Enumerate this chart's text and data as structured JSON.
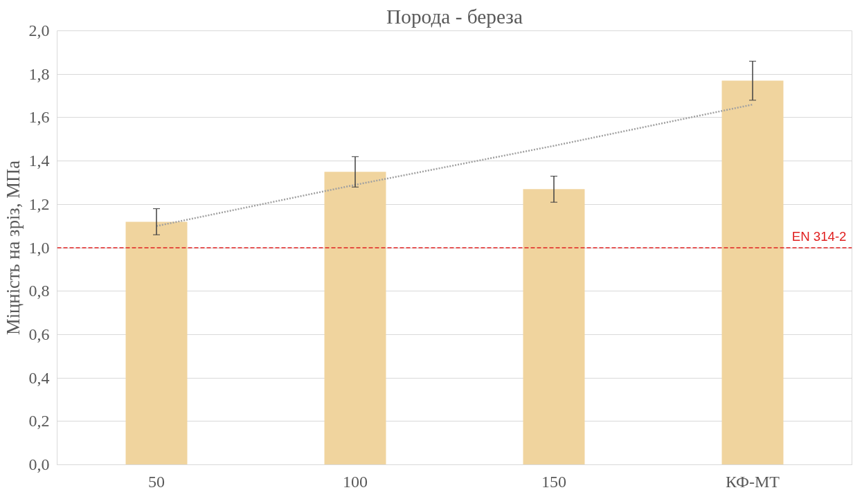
{
  "chart_data": {
    "type": "bar",
    "title": "Порода - береза",
    "ylabel": "Міцність на зріз, МПа",
    "categories": [
      "50",
      "100",
      "150",
      "КФ-МТ"
    ],
    "series": [
      {
        "color": "#f0d49e",
        "values": [
          1.12,
          1.35,
          1.27,
          1.77
        ],
        "errors": [
          0.06,
          0.07,
          0.06,
          0.09
        ]
      },
      {
        "type": "line",
        "color": "#a0a0a0",
        "line_style": "dotted",
        "values": [
          1.1,
          1.29,
          1.47,
          1.66
        ]
      }
    ],
    "ylim": [
      0,
      2.0
    ],
    "yticks": [
      {
        "value": 0,
        "label": "0,0"
      },
      {
        "value": 0.2,
        "label": "0,2"
      },
      {
        "value": 0.4,
        "label": "0,4"
      },
      {
        "value": 0.6,
        "label": "0,6"
      },
      {
        "value": 0.8,
        "label": "0,8"
      },
      {
        "value": 1.0,
        "label": "1,0"
      },
      {
        "value": 1.2,
        "label": "1,2"
      },
      {
        "value": 1.4,
        "label": "1,4"
      },
      {
        "value": 1.6,
        "label": "1,6"
      },
      {
        "value": 1.8,
        "label": "1,8"
      },
      {
        "value": 2.0,
        "label": "2,0"
      }
    ],
    "grid": "y",
    "ref_lines": [
      {
        "axis": "y",
        "value": 1.0,
        "label": "EN 314-2",
        "color": "#e02020",
        "line_style": "dashed"
      }
    ]
  }
}
